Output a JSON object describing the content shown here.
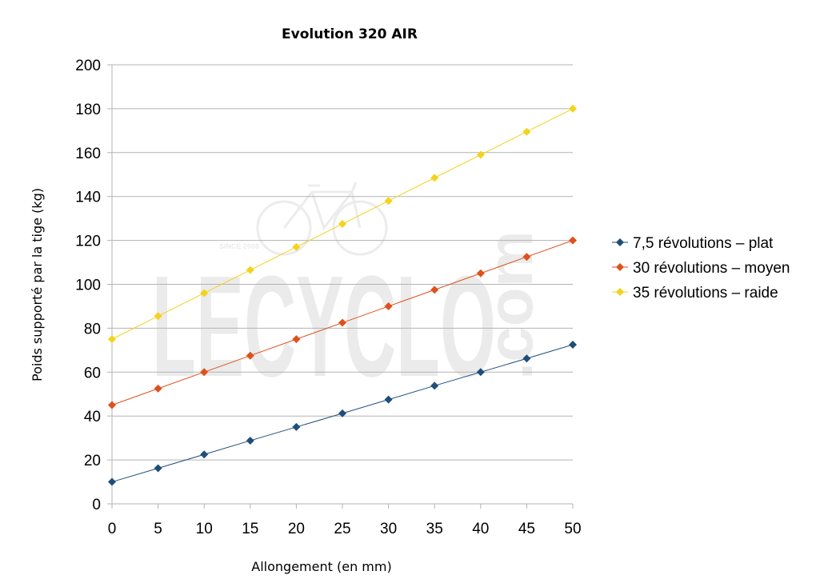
{
  "chart_data": {
    "type": "line",
    "title": "Evolution 320 AIR",
    "xlabel": "Allongement (en mm)",
    "ylabel": "Poids supporté par la tige (kg)",
    "x": [
      0,
      5,
      10,
      15,
      20,
      25,
      30,
      35,
      40,
      45,
      50
    ],
    "xlim": [
      0,
      50
    ],
    "ylim": [
      0,
      200
    ],
    "yticks": [
      0,
      20,
      40,
      60,
      80,
      100,
      120,
      140,
      160,
      180,
      200
    ],
    "grid": true,
    "legend_position": "right",
    "series": [
      {
        "name": "7,5 révolutions – plat",
        "color": "#1f4e79",
        "marker": "diamond",
        "values": [
          10,
          16.2,
          22.5,
          28.8,
          35,
          41.2,
          47.5,
          53.8,
          60,
          66.2,
          72.5
        ]
      },
      {
        "name": "30 révolutions – moyen",
        "color": "#e0501d",
        "marker": "diamond",
        "values": [
          45,
          52.5,
          60,
          67.5,
          75,
          82.5,
          90,
          97.5,
          105,
          112.5,
          120
        ]
      },
      {
        "name": "35 révolutions – raide",
        "color": "#f5d21e",
        "marker": "diamond",
        "values": [
          75,
          85.5,
          96,
          106.5,
          117,
          127.5,
          138,
          148.5,
          159,
          169.5,
          180
        ]
      }
    ]
  },
  "watermark": {
    "brand": "LECYCLO",
    "suffix": ".com",
    "tagline": "SINCE 2008"
  }
}
